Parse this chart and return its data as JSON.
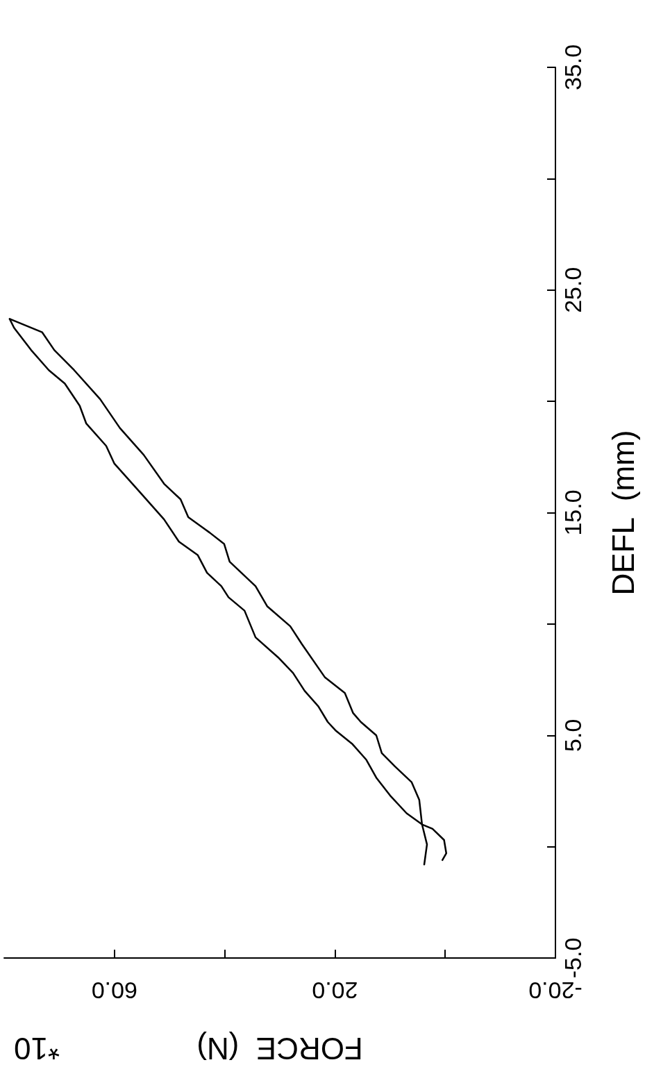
{
  "chart_data": {
    "type": "line",
    "xlabel": "FORCE  (N)",
    "ylabel": "DEFL  (mm)",
    "annotations": [
      "*10"
    ],
    "xlim": [
      80,
      -20
    ],
    "xticks": [
      {
        "value": 60,
        "label": "60.0"
      },
      {
        "value": 40,
        "label": null
      },
      {
        "value": 20,
        "label": "20.0"
      },
      {
        "value": 0,
        "label": null
      },
      {
        "value": -20,
        "label": "-20.0"
      }
    ],
    "ylim": [
      -5,
      35
    ],
    "yticks": [
      {
        "value": -5,
        "label": "-5.0"
      },
      {
        "value": 0,
        "label": null
      },
      {
        "value": 5,
        "label": "5.0"
      },
      {
        "value": 10,
        "label": null
      },
      {
        "value": 15,
        "label": "15.0"
      },
      {
        "value": 20,
        "label": null
      },
      {
        "value": 25,
        "label": "25.0"
      },
      {
        "value": 30,
        "label": null
      },
      {
        "value": 35,
        "label": "35.0"
      }
    ],
    "grid": false,
    "marker": "none",
    "line_style": "solid",
    "series": [
      {
        "color": "#000000",
        "x": [
          0.5,
          -0.2,
          0.2,
          2.3,
          4.2,
          7.0,
          10.0,
          12.5,
          14.3,
          16.8,
          19.8,
          21.3,
          23.0,
          25.5,
          27.6,
          30.3,
          34.4,
          36.4,
          39.3,
          40.6,
          43.2,
          44.9,
          48.3,
          51.0,
          55.3,
          60.0,
          61.5,
          65.1,
          66.3,
          69.0,
          71.9,
          75.1,
          78.2,
          79.0
        ],
        "values": [
          -0.6,
          -0.3,
          0.3,
          0.8,
          1.0,
          1.5,
          2.3,
          3.1,
          3.9,
          4.6,
          5.2,
          5.6,
          6.3,
          7.0,
          7.8,
          8.5,
          9.4,
          10.6,
          11.2,
          11.7,
          12.3,
          13.1,
          13.7,
          14.7,
          15.9,
          17.2,
          18.0,
          19.0,
          19.8,
          20.8,
          21.4,
          22.3,
          23.3,
          23.7
        ]
      },
      {
        "color": "#000000",
        "x": [
          79.0,
          73.1,
          70.9,
          67.3,
          62.6,
          59.0,
          54.7,
          51.0,
          48.0,
          46.6,
          42.7,
          40.1,
          39.1,
          34.4,
          32.3,
          28.1,
          26.0,
          21.8,
          18.2,
          16.7,
          15.3,
          12.5,
          11.5,
          9.1,
          6.1,
          4.7,
          4.2,
          3.3,
          3.8
        ],
        "values": [
          23.7,
          23.1,
          22.3,
          21.4,
          20.1,
          18.8,
          17.6,
          16.3,
          15.6,
          14.8,
          14.1,
          13.6,
          12.8,
          11.7,
          10.8,
          9.9,
          9.1,
          7.6,
          6.9,
          6.0,
          5.6,
          5.0,
          4.2,
          3.6,
          2.9,
          2.1,
          1.0,
          0.1,
          -0.8
        ]
      }
    ]
  }
}
